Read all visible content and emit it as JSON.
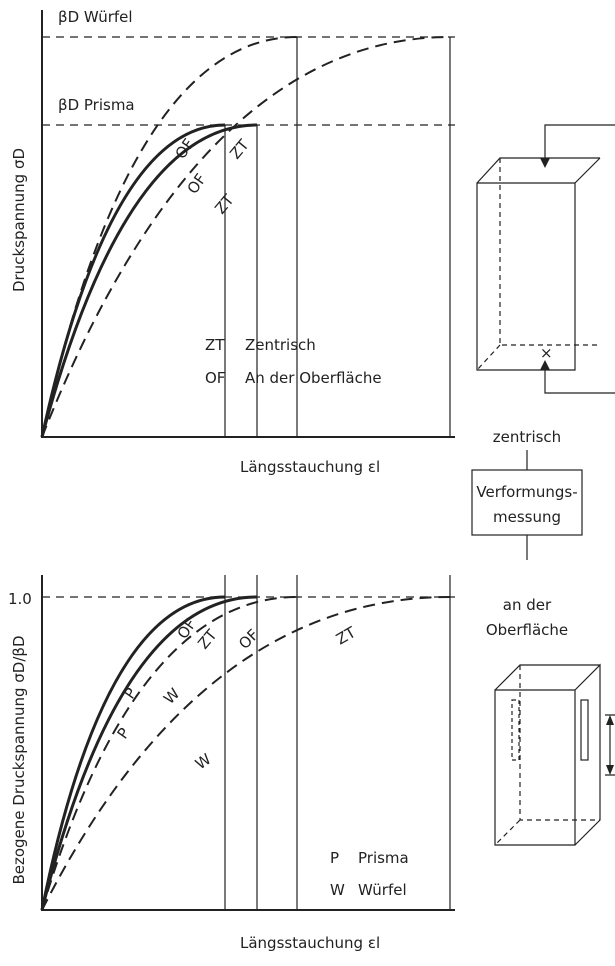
{
  "top_diagram": {
    "y_axis_label": "Druckspannung σD",
    "x_axis_label": "Längsstauchung εl",
    "level_cube": "βD Würfel",
    "level_prism": "βD Prisma",
    "curve_labels": [
      "OF",
      "OF",
      "ZT",
      "ZT"
    ],
    "legend": [
      {
        "key": "ZT",
        "text": "Zentrisch"
      },
      {
        "key": "OF",
        "text": "An der Oberfläche"
      }
    ]
  },
  "bottom_diagram": {
    "y_axis_label": "Bezogene Druckspannung σD/βD",
    "x_axis_label": "Längsstauchung εl",
    "y_tick": "1.0",
    "curve_labels": [
      "OF",
      "ZT",
      "OF",
      "ZT",
      "P",
      "P",
      "W",
      "W"
    ],
    "legend": [
      {
        "key": "P",
        "text": "Prisma"
      },
      {
        "key": "W",
        "text": "Würfel"
      }
    ]
  },
  "specimens": {
    "label_center": "zentrisch",
    "box": [
      "Verformungs-",
      "messung"
    ],
    "label_surface": [
      "an der",
      "Oberfläche"
    ]
  }
}
